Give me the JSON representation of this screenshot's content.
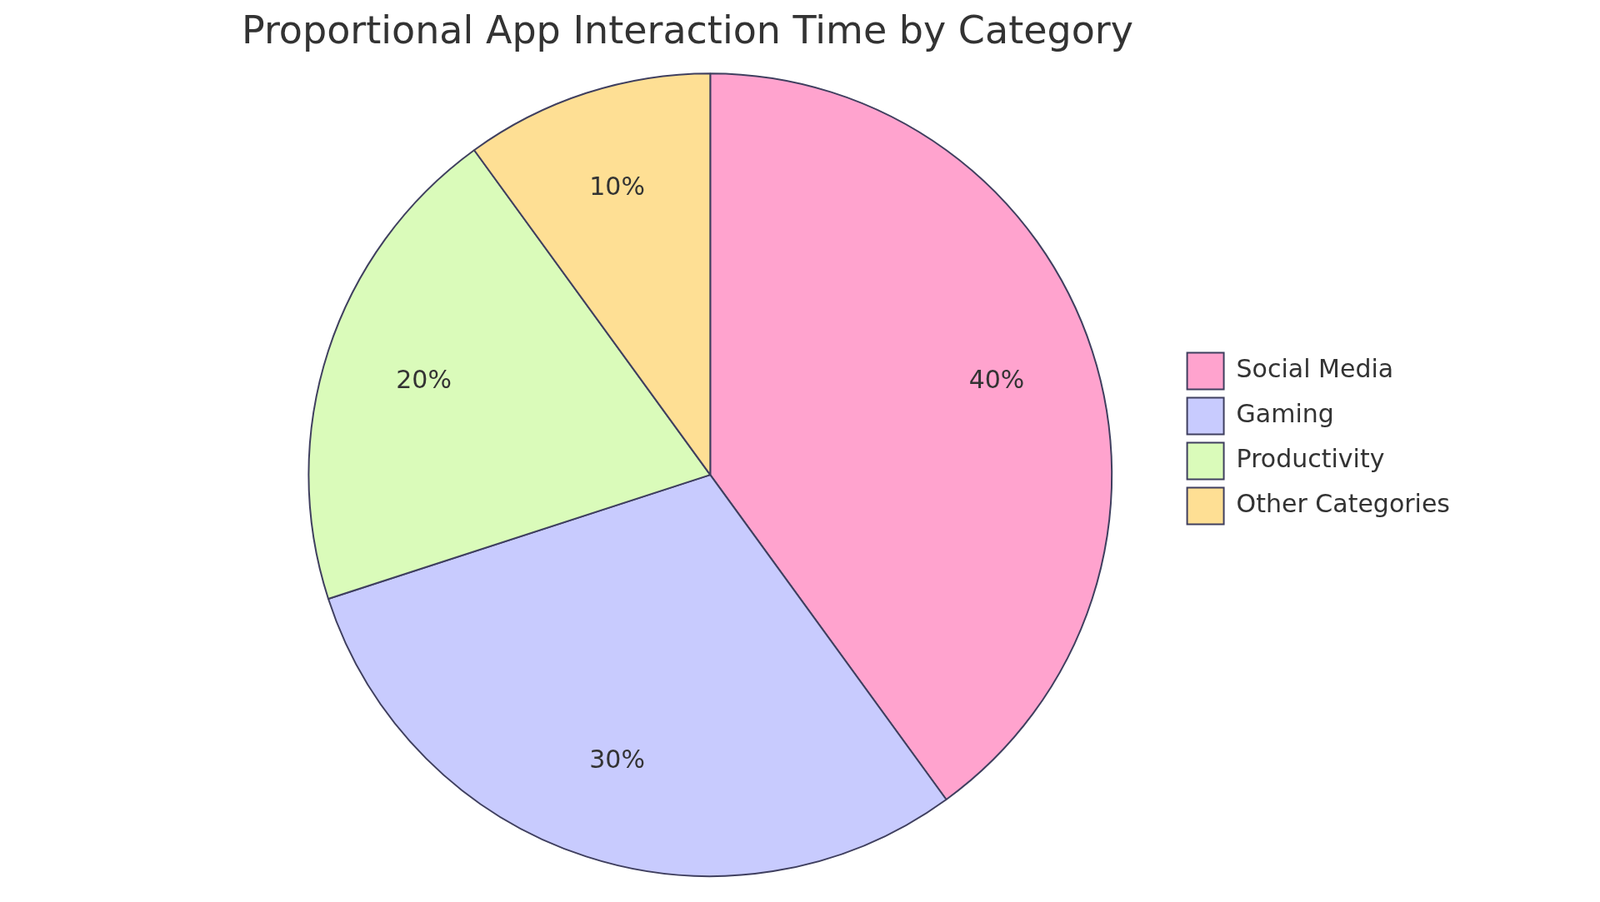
{
  "chart_data": {
    "type": "pie",
    "title": "Proportional App Interaction Time by Category",
    "categories": [
      "Social Media",
      "Gaming",
      "Productivity",
      "Other Categories"
    ],
    "values": [
      40,
      30,
      20,
      10
    ],
    "value_labels": [
      "40%",
      "30%",
      "20%",
      "10%"
    ],
    "colors": [
      "#ffa3ce",
      "#c8cbfe",
      "#dafbba",
      "#fedf94"
    ],
    "legend": "right",
    "data_labels": true
  }
}
